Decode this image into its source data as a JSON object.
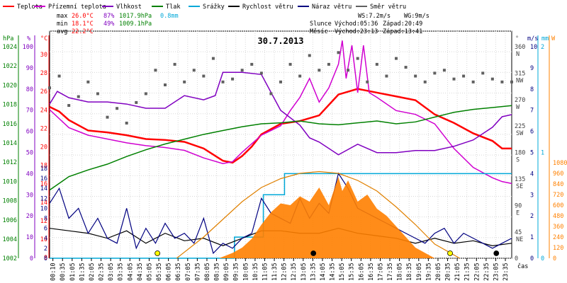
{
  "chart_data": {
    "type": "line",
    "title": "30.7.2013",
    "legend": [
      {
        "label": "Teplota",
        "color": "#ff0000"
      },
      {
        "label": "Přízemní teplota",
        "color": "#d000d0"
      },
      {
        "label": "Vlhkost",
        "color": "#8000c0"
      },
      {
        "label": "Tlak",
        "color": "#008000"
      },
      {
        "label": "Srážky",
        "color": "#00a8d8"
      },
      {
        "label": "Rychlost větru",
        "color": "#000000"
      },
      {
        "label": "Náraz větru",
        "color": "#000080"
      },
      {
        "label": "Směr větru",
        "color": "#606060"
      }
    ],
    "stats": [
      {
        "label": "max",
        "temp": "26.0°C",
        "hum": "87%",
        "press": "1017.9hPa",
        "rain": "0.8mm"
      },
      {
        "label": "min",
        "temp": "18.1°C",
        "hum": "49%",
        "press": "1009.1hPa"
      },
      {
        "label": "avg",
        "temp": "22.2°C"
      }
    ],
    "wind_stats": {
      "ws": "WS:7.2m/s",
      "wg": "WG:9m/s"
    },
    "sun": {
      "label": "Slunce",
      "rise": "Východ:05:36",
      "set": "Západ:20:49"
    },
    "moon": {
      "label": "Měsíc",
      "rise": "Východ:23:13",
      "set": "Západ:13:41"
    },
    "xlabel": "čas",
    "x_ticks": [
      "00:10",
      "00:35",
      "01:05",
      "01:35",
      "02:05",
      "02:35",
      "03:05",
      "03:35",
      "04:05",
      "04:35",
      "05:05",
      "05:35",
      "06:05",
      "06:35",
      "07:05",
      "07:35",
      "08:05",
      "08:35",
      "09:05",
      "09:35",
      "10:05",
      "10:35",
      "11:05",
      "11:35",
      "12:05",
      "12:35",
      "13:05",
      "13:35",
      "14:05",
      "14:35",
      "15:05",
      "15:35",
      "16:05",
      "16:35",
      "17:05",
      "17:35",
      "18:05",
      "18:35",
      "19:05",
      "19:35",
      "20:05",
      "20:35",
      "21:05",
      "21:35",
      "22:05",
      "22:35",
      "23:05",
      "23:35"
    ],
    "axes": {
      "pressure": {
        "unit": "hPa",
        "range": [
          1002,
          1024
        ],
        "ticks": [
          "1024",
          "1022",
          "1020",
          "1018",
          "1016",
          "1014",
          "1012",
          "1010",
          "1008",
          "1006",
          "1004",
          "1002"
        ]
      },
      "humidity": {
        "unit": "%",
        "range": [
          0,
          100
        ],
        "ticks": [
          "100",
          "90",
          "80",
          "70",
          "60",
          "50",
          "40",
          "30",
          "20",
          "10",
          "0"
        ]
      },
      "temperature": {
        "unit": "°C",
        "range": [
          8,
          32
        ],
        "ticks": [
          "30",
          "28",
          "26",
          "24",
          "22",
          "20",
          "18",
          "16",
          "14",
          "12",
          "10",
          "8"
        ]
      },
      "wind_speed": {
        "range": [
          0,
          18
        ],
        "ticks": [
          "18",
          "16",
          "14",
          "12",
          "10",
          "8",
          "6",
          "4",
          "2",
          "0"
        ]
      },
      "direction": {
        "unit": "°",
        "range": [
          0,
          360
        ],
        "ticks": [
          {
            "deg": "360",
            "dir": "N"
          },
          {
            "deg": "315",
            "dir": "NW"
          },
          {
            "deg": "270",
            "dir": "W"
          },
          {
            "deg": "225",
            "dir": "SW"
          },
          {
            "deg": "180",
            "dir": "S"
          },
          {
            "deg": "135",
            "dir": "SE"
          },
          {
            "deg": "90",
            "dir": "E"
          },
          {
            "deg": "45",
            "dir": "NE"
          },
          {
            "deg": "0",
            "dir": ""
          }
        ]
      },
      "wind_ms": {
        "unit": "m/s",
        "ticks": [
          "10",
          "9",
          "8",
          "7",
          "6",
          "5",
          "4",
          "3",
          "2",
          "1",
          "0"
        ]
      },
      "rain_mm": {
        "unit": "mm",
        "ticks": [
          "2",
          "1",
          "0"
        ]
      },
      "solar_w": {
        "unit": "W",
        "range": [
          0,
          1080
        ],
        "ticks": [
          "1080",
          "960",
          "840",
          "720",
          "600",
          "480",
          "360",
          "240",
          "120",
          "0"
        ]
      }
    },
    "series": [
      {
        "name": "Teplota",
        "color": "#ff0000",
        "axis": "temperature",
        "x": [
          0,
          0.5,
          1,
          2,
          3,
          4,
          5,
          6,
          7,
          8,
          9,
          9.5,
          10,
          10.5,
          11,
          12,
          13,
          14,
          15,
          16,
          17,
          18,
          19,
          20,
          21,
          22,
          23,
          23.5,
          24
        ],
        "y": [
          24,
          23.5,
          22.6,
          21.5,
          21.3,
          21.0,
          20.6,
          20.5,
          20.3,
          19.6,
          18.3,
          18.1,
          18.8,
          19.8,
          21.1,
          22.2,
          22.5,
          23.1,
          25.3,
          25.9,
          25.5,
          25.1,
          24.7,
          23.2,
          22.3,
          21.2,
          20.4,
          19.6,
          19.6
        ]
      },
      {
        "name": "Přízemní teplota",
        "color": "#d000d0",
        "axis": "temperature",
        "x": [
          0,
          1,
          2,
          3,
          4,
          5,
          6,
          7,
          8,
          9,
          9.5,
          10,
          11,
          12,
          12.5,
          13,
          13.5,
          14,
          14.5,
          15,
          15.2,
          15.4,
          15.7,
          16,
          16.3,
          16.6,
          17,
          18,
          19,
          20,
          21,
          22,
          23,
          23.5,
          24
        ],
        "y": [
          23.7,
          21.8,
          21.0,
          20.6,
          20.2,
          19.9,
          19.7,
          19.4,
          18.6,
          18.0,
          18.2,
          19.2,
          21.0,
          22.0,
          23.6,
          25.0,
          27.0,
          24.5,
          26.0,
          28.5,
          31.0,
          27.0,
          30.5,
          25.5,
          30.5,
          25.5,
          25.0,
          23.6,
          23.2,
          22.2,
          19.6,
          17.6,
          16.5,
          16.1,
          15.9
        ]
      },
      {
        "name": "Vlhkost",
        "color": "#8000c0",
        "axis": "humidity",
        "x": [
          0,
          0.4,
          1,
          2,
          3,
          4,
          5,
          6,
          7,
          8,
          8.6,
          9,
          10,
          11,
          12,
          13,
          13.5,
          14,
          15,
          16,
          17,
          18,
          19,
          20,
          21,
          22,
          23,
          23.5,
          24
        ],
        "y": [
          73,
          79,
          76,
          74,
          74,
          73,
          71,
          71,
          77,
          75,
          77,
          88,
          88,
          87,
          70,
          63,
          57,
          55,
          49,
          54,
          50,
          50,
          51,
          51,
          53,
          56,
          62,
          67,
          68
        ]
      },
      {
        "name": "Tlak",
        "color": "#008000",
        "axis": "pressure",
        "x": [
          0,
          1,
          2,
          3,
          4,
          5,
          6,
          7,
          8,
          9,
          10,
          11,
          12,
          13,
          14,
          15,
          16,
          17,
          18,
          19,
          20,
          21,
          22,
          23,
          24
        ],
        "y": [
          1009.1,
          1010.5,
          1011.2,
          1011.8,
          1012.6,
          1013.3,
          1013.9,
          1014.4,
          1014.9,
          1015.3,
          1015.7,
          1016.0,
          1016.1,
          1016.3,
          1016.0,
          1015.9,
          1016.1,
          1016.3,
          1016.0,
          1016.2,
          1016.7,
          1017.2,
          1017.5,
          1017.7,
          1017.9
        ]
      },
      {
        "name": "Srážky",
        "color": "#00a8d8",
        "axis": "rain_mm",
        "step": true,
        "x": [
          0,
          9.6,
          9.6,
          11.1,
          11.1,
          12.2,
          12.2,
          24
        ],
        "y": [
          0,
          0,
          0.2,
          0.2,
          0.6,
          0.6,
          0.8,
          0.8
        ]
      },
      {
        "name": "Rychlost větru",
        "color": "#000000",
        "axis": "wind_speed",
        "x": [
          0,
          1,
          2,
          3,
          4,
          5,
          6,
          7,
          8,
          9,
          10,
          11,
          12,
          13,
          14,
          15,
          16,
          17,
          18,
          19,
          20,
          21,
          22,
          23,
          24
        ],
        "y": [
          6,
          5.5,
          5,
          4,
          5.5,
          3,
          5,
          3.5,
          4,
          2.5,
          4,
          5.5,
          5.5,
          5,
          5,
          6,
          5,
          4.5,
          4,
          3,
          4,
          3,
          3.5,
          2.5,
          3
        ]
      },
      {
        "name": "Náraz větru",
        "color": "#000080",
        "axis": "wind_speed",
        "x": [
          0,
          0.5,
          1,
          1.5,
          2,
          2.5,
          3,
          3.5,
          4,
          4.5,
          5,
          5.5,
          6,
          6.5,
          7,
          7.5,
          8,
          8.5,
          9,
          9.5,
          10,
          10.5,
          11,
          11.5,
          12,
          12.5,
          13,
          13.5,
          14,
          14.5,
          15,
          15.5,
          16,
          16.5,
          17,
          17.5,
          18,
          18.5,
          19,
          19.5,
          20,
          20.5,
          21,
          21.5,
          22,
          22.5,
          23,
          23.5,
          24
        ],
        "y": [
          11,
          14,
          8,
          10,
          5,
          8,
          4,
          3,
          10,
          2,
          6,
          3,
          7,
          4,
          5,
          3,
          8,
          1,
          3,
          2,
          4,
          5,
          12,
          9,
          8,
          7,
          12,
          8,
          11,
          9,
          17,
          14,
          10,
          9,
          8,
          7,
          6,
          5,
          4,
          3,
          5,
          6,
          3,
          5,
          4,
          3,
          2,
          3,
          4
        ]
      },
      {
        "name": "Směr větru",
        "color": "#606060",
        "axis": "direction",
        "dots": true,
        "x": [
          0,
          0.5,
          1,
          1.5,
          2,
          2.5,
          3,
          3.5,
          4,
          4.5,
          5,
          5.5,
          6,
          6.5,
          7,
          7.5,
          8,
          8.5,
          9,
          9.5,
          10,
          10.5,
          11,
          11.5,
          12,
          12.5,
          13,
          13.5,
          14,
          14.5,
          15,
          15.5,
          16,
          16.5,
          17,
          17.5,
          18,
          18.5,
          19,
          19.5,
          20,
          20.5,
          21,
          21.5,
          22,
          22.5,
          23,
          23.5,
          24
        ],
        "y": [
          290,
          310,
          260,
          275,
          300,
          280,
          240,
          255,
          230,
          265,
          280,
          320,
          295,
          330,
          300,
          320,
          310,
          340,
          300,
          305,
          320,
          330,
          315,
          280,
          300,
          330,
          310,
          345,
          320,
          330,
          350,
          320,
          340,
          300,
          330,
          310,
          340,
          325,
          310,
          300,
          315,
          320,
          305,
          310,
          300,
          315,
          305,
          300,
          300
        ]
      },
      {
        "name": "Solar",
        "color": "#ff8000",
        "axis": "solar_w",
        "area": true,
        "x": [
          8.8,
          9.5,
          10,
          10.5,
          11,
          11.5,
          12,
          12.5,
          13,
          13.5,
          14,
          14.5,
          15,
          15.2,
          15.5,
          16,
          16.5,
          17,
          17.5,
          18,
          18.5,
          19,
          19.5,
          20
        ],
        "y": [
          0,
          60,
          120,
          220,
          380,
          520,
          620,
          600,
          700,
          640,
          800,
          600,
          920,
          760,
          880,
          640,
          720,
          560,
          480,
          360,
          240,
          120,
          60,
          0
        ]
      },
      {
        "name": "Theoretical solar",
        "color": "#e08000",
        "axis": "solar_w",
        "thin": true,
        "x": [
          6.6,
          8,
          9,
          10,
          11,
          12,
          13,
          14,
          15,
          16,
          17,
          18,
          19,
          20,
          21.3
        ],
        "y": [
          0,
          240,
          440,
          640,
          800,
          900,
          960,
          980,
          960,
          880,
          760,
          580,
          380,
          160,
          0
        ]
      }
    ],
    "markers": [
      {
        "label": "sunrise",
        "x": 5.6,
        "color": "#ffff00"
      },
      {
        "label": "sunset",
        "x": 20.8,
        "color": "#ffff00"
      },
      {
        "label": "moonrise",
        "x": 23.2,
        "color": "#000000"
      },
      {
        "label": "moonset",
        "x": 13.7,
        "color": "#000000"
      }
    ]
  }
}
